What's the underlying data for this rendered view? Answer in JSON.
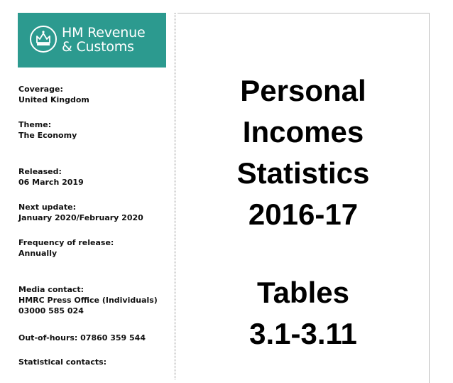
{
  "logo": {
    "line1": "HM Revenue",
    "line2": "& Customs",
    "bg_color": "#2c9a8f"
  },
  "meta": [
    {
      "label": "Coverage:",
      "value": "United Kingdom"
    },
    {
      "label": "Theme:",
      "value": "The Economy"
    },
    {
      "label": "Released:",
      "value": "06 March 2019"
    },
    {
      "label": "Next update:",
      "value": "January 2020/February 2020"
    },
    {
      "label": "Frequency of release:",
      "value": "Annually"
    },
    {
      "label": "Media contact:",
      "value": "HMRC Press Office (Individuals)",
      "value2": "03000 585 024"
    },
    {
      "label": "Out-of-hours: 07860 359 544"
    },
    {
      "label": "Statistical contacts:"
    }
  ],
  "title": {
    "line1": "Personal",
    "line2": "Incomes",
    "line3": "Statistics",
    "line4": "2016-17",
    "line5": "Tables",
    "line6": "3.1-3.11"
  }
}
